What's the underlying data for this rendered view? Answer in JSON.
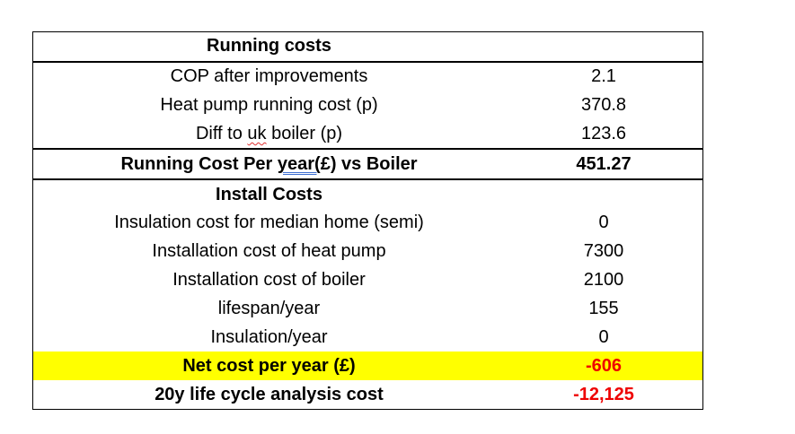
{
  "colors": {
    "highlight_yellow": "#FFFF00",
    "negative_red": "#EE0000",
    "spellcheck_red": "#E03131",
    "grammar_blue": "#3E6FD0",
    "border_black": "#000000"
  },
  "table": {
    "rows": [
      {
        "type": "section-header",
        "label": "Running costs",
        "value": ""
      },
      {
        "type": "data",
        "label": "COP after improvements",
        "value": "2.1"
      },
      {
        "type": "data",
        "label": "Heat pump running cost (p)",
        "value": "370.8"
      },
      {
        "type": "data",
        "parts": [
          "Diff to ",
          "uk",
          " boiler (p)"
        ],
        "spellcheck_word": "uk",
        "value": "123.6"
      },
      {
        "type": "summary",
        "parts": [
          "Running Cost Per ",
          "year(",
          "£) vs Boiler"
        ],
        "grammar_word": "year(",
        "value": "451.27"
      },
      {
        "type": "section-header",
        "label": "Install Costs",
        "value": ""
      },
      {
        "type": "data",
        "label": "Insulation cost for median home (semi)",
        "value": "0"
      },
      {
        "type": "data",
        "label": "Installation cost of heat pump",
        "value": "7300"
      },
      {
        "type": "data",
        "label": "Installation cost of boiler",
        "value": "2100"
      },
      {
        "type": "data",
        "label": "lifespan/year",
        "value": "155"
      },
      {
        "type": "data",
        "label": "Insulation/year",
        "value": "0"
      },
      {
        "type": "highlight",
        "label": "Net cost per year (£)",
        "value": "-606"
      },
      {
        "type": "total",
        "label": "20y life cycle analysis cost",
        "value": "-12,125"
      }
    ]
  }
}
